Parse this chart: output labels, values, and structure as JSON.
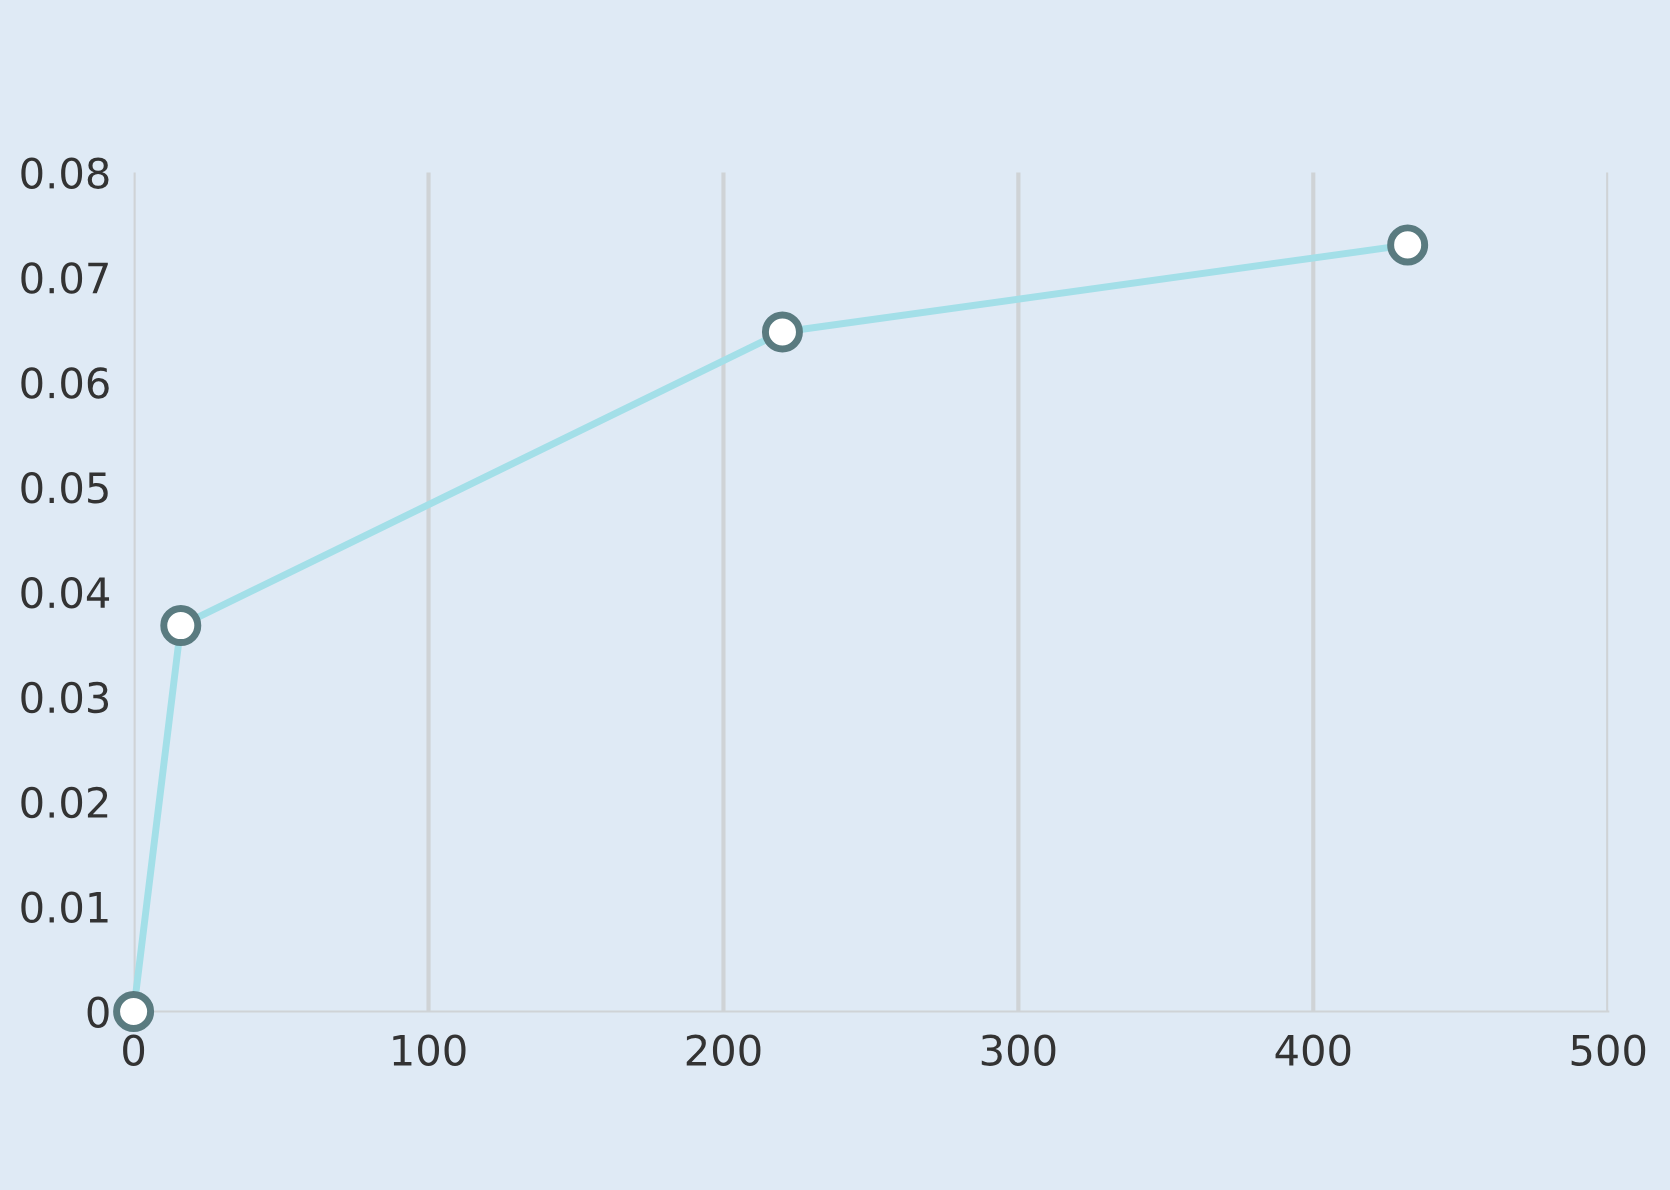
{
  "chart_data": {
    "type": "line",
    "x": [
      0,
      16,
      220,
      432
    ],
    "series": [
      {
        "color": "#a3dfe8",
        "values": [
          0,
          0.0368,
          0.0648,
          0.0731
        ]
      }
    ],
    "marker": "circle",
    "grid": "x",
    "xlim": [
      0,
      500
    ],
    "xticks": [
      0,
      100,
      200,
      300,
      400,
      500
    ],
    "ylim": [
      0,
      0.08
    ],
    "yticks": [
      0,
      0.01,
      0.02,
      0.03,
      0.04,
      0.05,
      0.06,
      0.07,
      0.08
    ]
  }
}
